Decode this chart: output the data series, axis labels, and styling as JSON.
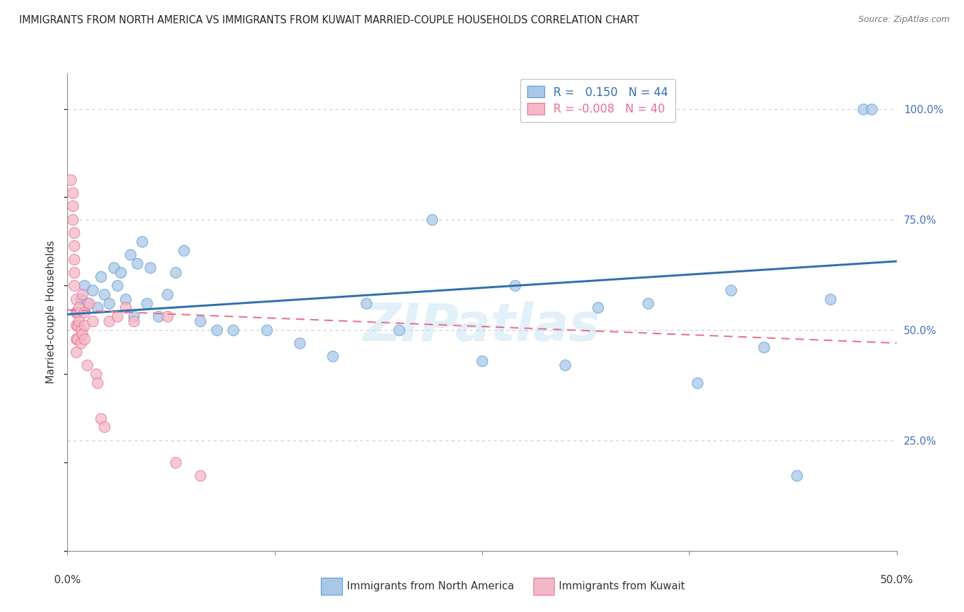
{
  "title": "IMMIGRANTS FROM NORTH AMERICA VS IMMIGRANTS FROM KUWAIT MARRIED-COUPLE HOUSEHOLDS CORRELATION CHART",
  "source": "Source: ZipAtlas.com",
  "ylabel": "Married-couple Households",
  "yticks": [
    "100.0%",
    "75.0%",
    "50.0%",
    "25.0%"
  ],
  "ytick_vals": [
    1.0,
    0.75,
    0.5,
    0.25
  ],
  "xlim": [
    0.0,
    0.5
  ],
  "ylim": [
    0.0,
    1.08
  ],
  "legend_blue_R": "0.150",
  "legend_blue_N": "44",
  "legend_pink_R": "-0.008",
  "legend_pink_N": "40",
  "blue_fill": "#a8c8e8",
  "blue_edge": "#5b9bd5",
  "pink_fill": "#f4b8c8",
  "pink_edge": "#e87090",
  "blue_line_color": "#3070b0",
  "pink_line_color": "#e06080",
  "watermark": "ZIPatlas",
  "blue_scatter_x": [
    0.005,
    0.008,
    0.01,
    0.012,
    0.015,
    0.018,
    0.02,
    0.022,
    0.025,
    0.028,
    0.03,
    0.032,
    0.035,
    0.038,
    0.04,
    0.042,
    0.045,
    0.048,
    0.05,
    0.055,
    0.06,
    0.065,
    0.07,
    0.08,
    0.09,
    0.1,
    0.12,
    0.14,
    0.16,
    0.18,
    0.2,
    0.22,
    0.25,
    0.27,
    0.3,
    0.32,
    0.35,
    0.38,
    0.4,
    0.42,
    0.44,
    0.46,
    0.48,
    0.485
  ],
  "blue_scatter_y": [
    0.54,
    0.57,
    0.6,
    0.56,
    0.59,
    0.55,
    0.62,
    0.58,
    0.56,
    0.64,
    0.6,
    0.63,
    0.57,
    0.67,
    0.53,
    0.65,
    0.7,
    0.56,
    0.64,
    0.53,
    0.58,
    0.63,
    0.68,
    0.52,
    0.5,
    0.5,
    0.5,
    0.47,
    0.44,
    0.56,
    0.5,
    0.75,
    0.43,
    0.6,
    0.42,
    0.55,
    0.56,
    0.38,
    0.59,
    0.46,
    0.17,
    0.57,
    1.0,
    1.0
  ],
  "pink_scatter_x": [
    0.002,
    0.003,
    0.003,
    0.003,
    0.004,
    0.004,
    0.004,
    0.004,
    0.004,
    0.005,
    0.005,
    0.005,
    0.005,
    0.005,
    0.006,
    0.006,
    0.006,
    0.007,
    0.007,
    0.008,
    0.008,
    0.009,
    0.009,
    0.01,
    0.01,
    0.01,
    0.012,
    0.013,
    0.015,
    0.017,
    0.018,
    0.02,
    0.022,
    0.025,
    0.03,
    0.035,
    0.04,
    0.06,
    0.065,
    0.08
  ],
  "pink_scatter_y": [
    0.84,
    0.81,
    0.78,
    0.75,
    0.72,
    0.69,
    0.66,
    0.63,
    0.6,
    0.57,
    0.54,
    0.51,
    0.48,
    0.45,
    0.54,
    0.51,
    0.48,
    0.55,
    0.52,
    0.5,
    0.47,
    0.58,
    0.49,
    0.54,
    0.51,
    0.48,
    0.42,
    0.56,
    0.52,
    0.4,
    0.38,
    0.3,
    0.28,
    0.52,
    0.53,
    0.55,
    0.52,
    0.53,
    0.2,
    0.17
  ],
  "blue_trend_x": [
    0.0,
    0.5
  ],
  "blue_trend_y": [
    0.535,
    0.655
  ],
  "pink_trend_x": [
    0.0,
    0.5
  ],
  "pink_trend_y": [
    0.545,
    0.47
  ],
  "background_color": "#ffffff",
  "grid_color": "#cccccc",
  "title_color": "#222222",
  "right_axis_color": "#4472c4",
  "spine_color": "#888888",
  "legend_label_blue": "Immigrants from North America",
  "legend_label_pink": "Immigrants from Kuwait"
}
